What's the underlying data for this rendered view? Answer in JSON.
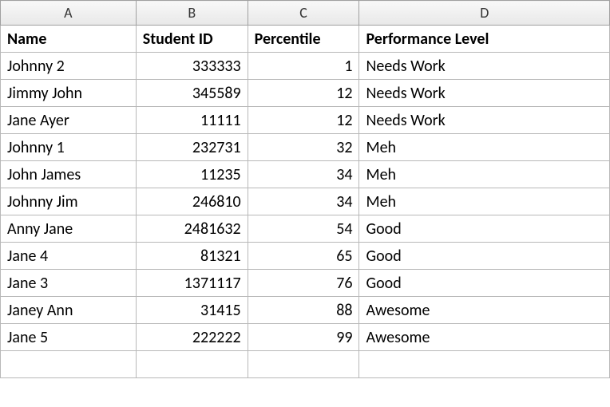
{
  "columns": {
    "letters": [
      "A",
      "B",
      "C",
      "D"
    ],
    "headers": [
      "Name",
      "Student ID",
      "Percentile",
      "Performance Level"
    ]
  },
  "rows": [
    {
      "name": "Johnny 2",
      "student_id": "333333",
      "percentile": "1",
      "performance": "Needs Work"
    },
    {
      "name": "Jimmy John",
      "student_id": "345589",
      "percentile": "12",
      "performance": "Needs Work"
    },
    {
      "name": "Jane Ayer",
      "student_id": "11111",
      "percentile": "12",
      "performance": "Needs Work"
    },
    {
      "name": "Johnny 1",
      "student_id": "232731",
      "percentile": "32",
      "performance": "Meh"
    },
    {
      "name": "John James",
      "student_id": "11235",
      "percentile": "34",
      "performance": "Meh"
    },
    {
      "name": "Johnny Jim",
      "student_id": "246810",
      "percentile": "34",
      "performance": "Meh"
    },
    {
      "name": "Anny Jane",
      "student_id": "2481632",
      "percentile": "54",
      "performance": "Good"
    },
    {
      "name": "Jane 4",
      "student_id": "81321",
      "percentile": "65",
      "performance": "Good"
    },
    {
      "name": "Jane 3",
      "student_id": "1371117",
      "percentile": "76",
      "performance": "Good"
    },
    {
      "name": "Janey Ann",
      "student_id": "31415",
      "percentile": "88",
      "performance": "Awesome"
    },
    {
      "name": "Jane 5",
      "student_id": "222222",
      "percentile": "99",
      "performance": "Awesome"
    }
  ],
  "styling": {
    "col_widths": {
      "A": 170,
      "B": 140,
      "C": 140,
      "D": 314
    },
    "header_bg_gradient": [
      "#f8f8f8",
      "#e8e8e8"
    ],
    "border_color": "#b8b8b8",
    "header_border_color": "#a0a0a0",
    "font_family": "Calibri",
    "font_size": 20,
    "header_font_size": 18,
    "alignments": {
      "name": "left",
      "student_id": "right",
      "percentile": "right",
      "performance": "left"
    }
  }
}
